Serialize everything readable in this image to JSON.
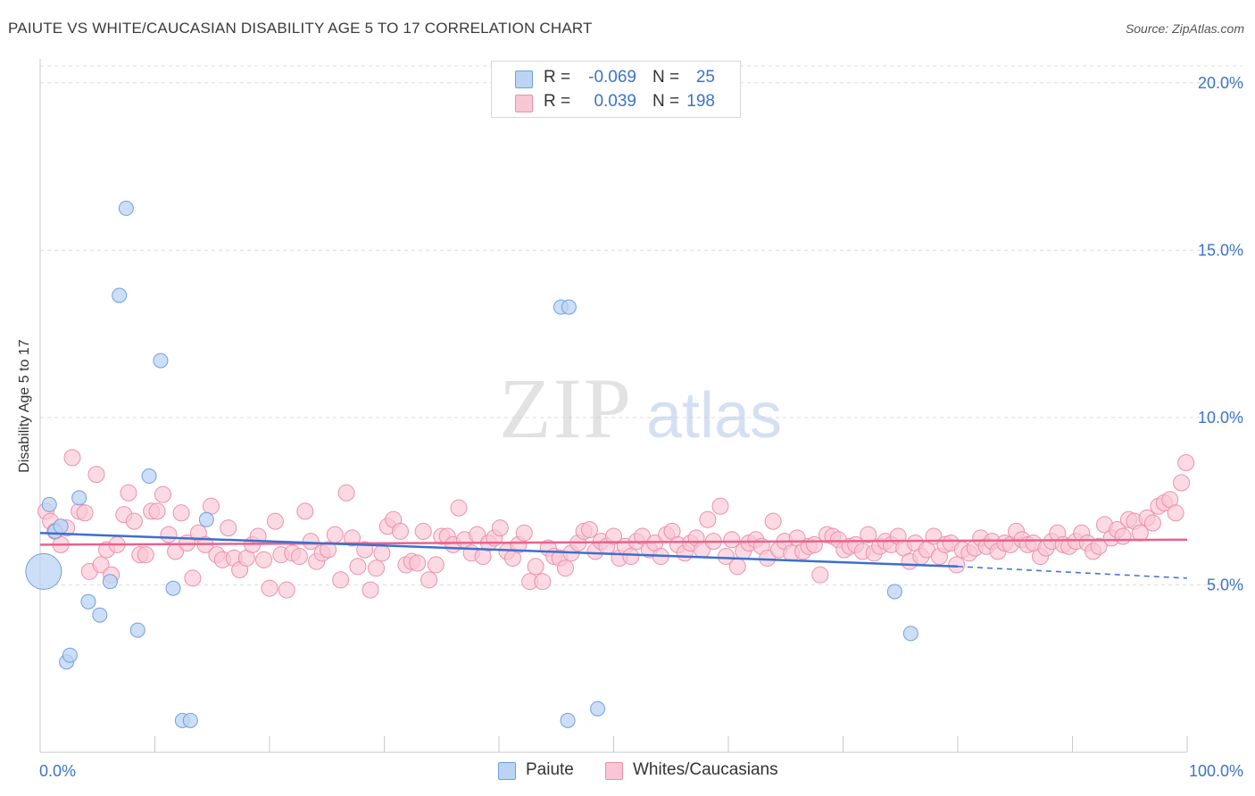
{
  "title": "PAIUTE VS WHITE/CAUCASIAN DISABILITY AGE 5 TO 17 CORRELATION CHART",
  "source": "Source: ZipAtlas.com",
  "colors": {
    "blue_fill": "#bcd4f3",
    "blue_stroke": "#6f9fdf",
    "blue_line": "#3b6fd0",
    "pink_fill": "#f9c6d4",
    "pink_stroke": "#ec8fac",
    "pink_line": "#e8628c",
    "axis_text": "#3b73c9",
    "grid": "#dcdcdc"
  },
  "legend": {
    "rows": [
      {
        "name": "Paiute",
        "r_label": "R =",
        "r": "-0.069",
        "n_label": "N =",
        "n": "25"
      },
      {
        "name": "Whites/Caucasians",
        "r_label": "R =",
        "r": "0.039",
        "n_label": "N =",
        "n": "198"
      }
    ]
  },
  "chart_data": {
    "type": "scatter",
    "title": "PAIUTE VS WHITE/CAUCASIAN DISABILITY AGE 5 TO 17 CORRELATION CHART",
    "xlabel": "",
    "ylabel": "Disability Age 5 to 17",
    "xlim": [
      0,
      100
    ],
    "ylim": [
      0,
      20.5
    ],
    "x_tick_labels": [
      "0.0%",
      "100.0%"
    ],
    "y_ticks": [
      5,
      10,
      15,
      20
    ],
    "y_tick_labels": [
      "5.0%",
      "10.0%",
      "15.0%",
      "20.0%"
    ],
    "watermark": "ZIPatlas",
    "series": [
      {
        "name": "Paiute",
        "r": -0.069,
        "n": 25,
        "trend": {
          "x": [
            0,
            80
          ],
          "y": [
            6.55,
            5.55
          ],
          "dashed_to": [
            100,
            5.2
          ]
        },
        "points": [
          [
            0.3,
            5.4
          ],
          [
            0.8,
            7.4
          ],
          [
            1.3,
            6.6
          ],
          [
            1.8,
            6.75
          ],
          [
            2.3,
            2.7
          ],
          [
            2.6,
            2.9
          ],
          [
            3.4,
            7.6
          ],
          [
            4.2,
            4.5
          ],
          [
            5.2,
            4.1
          ],
          [
            6.1,
            5.1
          ],
          [
            6.9,
            13.65
          ],
          [
            7.5,
            16.25
          ],
          [
            8.5,
            3.65
          ],
          [
            9.5,
            8.25
          ],
          [
            10.5,
            11.7
          ],
          [
            11.6,
            4.9
          ],
          [
            12.4,
            0.95
          ],
          [
            13.1,
            0.95
          ],
          [
            14.5,
            6.95
          ],
          [
            46.0,
            0.95
          ],
          [
            45.4,
            13.3
          ],
          [
            46.1,
            13.3
          ],
          [
            48.6,
            1.3
          ],
          [
            74.5,
            4.8
          ],
          [
            75.9,
            3.55
          ]
        ]
      },
      {
        "name": "Whites/Caucasians",
        "r": 0.039,
        "n": 198,
        "trend": {
          "x": [
            0,
            100
          ],
          "y": [
            6.2,
            6.35
          ]
        },
        "points": [
          [
            0.5,
            7.2
          ],
          [
            0.9,
            6.9
          ],
          [
            1.3,
            6.6
          ],
          [
            1.8,
            6.2
          ],
          [
            2.3,
            6.7
          ],
          [
            2.8,
            8.8
          ],
          [
            3.4,
            7.2
          ],
          [
            3.9,
            7.15
          ],
          [
            4.3,
            5.4
          ],
          [
            4.9,
            8.3
          ],
          [
            5.3,
            5.6
          ],
          [
            5.8,
            6.05
          ],
          [
            6.2,
            5.3
          ],
          [
            6.7,
            6.2
          ],
          [
            7.3,
            7.1
          ],
          [
            7.7,
            7.75
          ],
          [
            8.2,
            6.9
          ],
          [
            8.7,
            5.9
          ],
          [
            9.2,
            5.9
          ],
          [
            9.7,
            7.2
          ],
          [
            10.2,
            7.2
          ],
          [
            10.7,
            7.7
          ],
          [
            11.2,
            6.5
          ],
          [
            11.8,
            6.0
          ],
          [
            12.3,
            7.15
          ],
          [
            12.8,
            6.25
          ],
          [
            13.3,
            5.2
          ],
          [
            13.8,
            6.55
          ],
          [
            14.4,
            6.2
          ],
          [
            14.9,
            7.35
          ],
          [
            15.4,
            5.9
          ],
          [
            15.9,
            5.75
          ],
          [
            16.4,
            6.7
          ],
          [
            16.9,
            5.8
          ],
          [
            17.4,
            5.45
          ],
          [
            18.0,
            5.8
          ],
          [
            18.5,
            6.2
          ],
          [
            19.0,
            6.45
          ],
          [
            19.5,
            5.75
          ],
          [
            20.0,
            4.9
          ],
          [
            20.5,
            6.9
          ],
          [
            21.0,
            5.9
          ],
          [
            21.5,
            4.85
          ],
          [
            22.0,
            5.95
          ],
          [
            22.6,
            5.85
          ],
          [
            23.1,
            7.2
          ],
          [
            23.6,
            6.3
          ],
          [
            24.1,
            5.7
          ],
          [
            24.6,
            5.95
          ],
          [
            25.1,
            6.05
          ],
          [
            25.7,
            6.5
          ],
          [
            26.2,
            5.15
          ],
          [
            26.7,
            7.75
          ],
          [
            27.2,
            6.4
          ],
          [
            27.7,
            5.55
          ],
          [
            28.3,
            6.05
          ],
          [
            28.8,
            4.85
          ],
          [
            29.3,
            5.5
          ],
          [
            29.8,
            5.95
          ],
          [
            30.3,
            6.75
          ],
          [
            30.8,
            6.95
          ],
          [
            31.4,
            6.6
          ],
          [
            31.9,
            5.6
          ],
          [
            32.4,
            5.7
          ],
          [
            32.9,
            5.65
          ],
          [
            33.4,
            6.6
          ],
          [
            33.9,
            5.15
          ],
          [
            34.5,
            5.6
          ],
          [
            35.0,
            6.45
          ],
          [
            35.5,
            6.45
          ],
          [
            36.0,
            6.2
          ],
          [
            36.5,
            7.3
          ],
          [
            37.0,
            6.35
          ],
          [
            37.6,
            5.95
          ],
          [
            38.1,
            6.5
          ],
          [
            38.6,
            5.85
          ],
          [
            39.1,
            6.25
          ],
          [
            39.6,
            6.4
          ],
          [
            40.1,
            6.7
          ],
          [
            40.7,
            6.0
          ],
          [
            41.2,
            5.8
          ],
          [
            41.7,
            6.2
          ],
          [
            42.2,
            6.55
          ],
          [
            42.7,
            5.1
          ],
          [
            43.2,
            5.55
          ],
          [
            43.8,
            5.1
          ],
          [
            44.3,
            6.1
          ],
          [
            44.8,
            5.85
          ],
          [
            45.3,
            5.8
          ],
          [
            45.8,
            5.5
          ],
          [
            46.3,
            5.95
          ],
          [
            46.9,
            6.25
          ],
          [
            47.4,
            6.6
          ],
          [
            47.9,
            6.65
          ],
          [
            48.4,
            6.0
          ],
          [
            48.9,
            6.3
          ],
          [
            49.4,
            6.15
          ],
          [
            50.0,
            6.45
          ],
          [
            50.5,
            5.8
          ],
          [
            51.0,
            6.15
          ],
          [
            51.5,
            5.85
          ],
          [
            52.0,
            6.3
          ],
          [
            52.5,
            6.45
          ],
          [
            53.1,
            6.05
          ],
          [
            53.6,
            6.25
          ],
          [
            54.1,
            5.85
          ],
          [
            54.6,
            6.5
          ],
          [
            55.1,
            6.6
          ],
          [
            55.6,
            6.2
          ],
          [
            56.2,
            5.95
          ],
          [
            56.7,
            6.25
          ],
          [
            57.2,
            6.4
          ],
          [
            57.7,
            6.05
          ],
          [
            58.2,
            6.95
          ],
          [
            58.7,
            6.3
          ],
          [
            59.3,
            7.35
          ],
          [
            59.8,
            5.85
          ],
          [
            60.3,
            6.35
          ],
          [
            60.8,
            5.55
          ],
          [
            61.3,
            6.0
          ],
          [
            61.8,
            6.25
          ],
          [
            62.4,
            6.35
          ],
          [
            62.9,
            6.15
          ],
          [
            63.4,
            5.8
          ],
          [
            63.9,
            6.9
          ],
          [
            64.4,
            6.05
          ],
          [
            64.9,
            6.3
          ],
          [
            65.5,
            5.95
          ],
          [
            66.0,
            6.4
          ],
          [
            66.5,
            6.0
          ],
          [
            67.0,
            6.15
          ],
          [
            67.5,
            6.2
          ],
          [
            68.0,
            5.3
          ],
          [
            68.6,
            6.5
          ],
          [
            69.1,
            6.45
          ],
          [
            69.6,
            6.35
          ],
          [
            70.1,
            6.05
          ],
          [
            70.6,
            6.15
          ],
          [
            71.1,
            6.2
          ],
          [
            71.7,
            6.0
          ],
          [
            72.2,
            6.5
          ],
          [
            72.7,
            5.95
          ],
          [
            73.2,
            6.15
          ],
          [
            73.7,
            6.3
          ],
          [
            74.2,
            6.2
          ],
          [
            74.8,
            6.45
          ],
          [
            75.3,
            6.1
          ],
          [
            75.8,
            5.7
          ],
          [
            76.3,
            6.25
          ],
          [
            76.8,
            5.85
          ],
          [
            77.3,
            6.05
          ],
          [
            77.9,
            6.45
          ],
          [
            78.4,
            5.85
          ],
          [
            78.9,
            6.2
          ],
          [
            79.4,
            6.25
          ],
          [
            79.9,
            5.6
          ],
          [
            80.4,
            6.05
          ],
          [
            81.0,
            5.95
          ],
          [
            81.5,
            6.1
          ],
          [
            82.0,
            6.4
          ],
          [
            82.5,
            6.15
          ],
          [
            83.0,
            6.3
          ],
          [
            83.5,
            6.0
          ],
          [
            84.1,
            6.25
          ],
          [
            84.6,
            6.2
          ],
          [
            85.1,
            6.6
          ],
          [
            85.6,
            6.35
          ],
          [
            86.1,
            6.2
          ],
          [
            86.6,
            6.25
          ],
          [
            87.2,
            5.85
          ],
          [
            87.7,
            6.1
          ],
          [
            88.2,
            6.3
          ],
          [
            88.7,
            6.55
          ],
          [
            89.2,
            6.2
          ],
          [
            89.7,
            6.15
          ],
          [
            90.3,
            6.3
          ],
          [
            90.8,
            6.55
          ],
          [
            91.3,
            6.25
          ],
          [
            91.8,
            6.0
          ],
          [
            92.3,
            6.15
          ],
          [
            92.8,
            6.8
          ],
          [
            93.4,
            6.4
          ],
          [
            93.9,
            6.65
          ],
          [
            94.4,
            6.45
          ],
          [
            94.9,
            6.95
          ],
          [
            95.4,
            6.9
          ],
          [
            95.9,
            6.55
          ],
          [
            96.5,
            7.0
          ],
          [
            97.0,
            6.85
          ],
          [
            97.5,
            7.35
          ],
          [
            98.0,
            7.45
          ],
          [
            98.5,
            7.55
          ],
          [
            99.0,
            7.15
          ],
          [
            99.5,
            8.05
          ],
          [
            99.9,
            8.65
          ]
        ]
      }
    ]
  }
}
